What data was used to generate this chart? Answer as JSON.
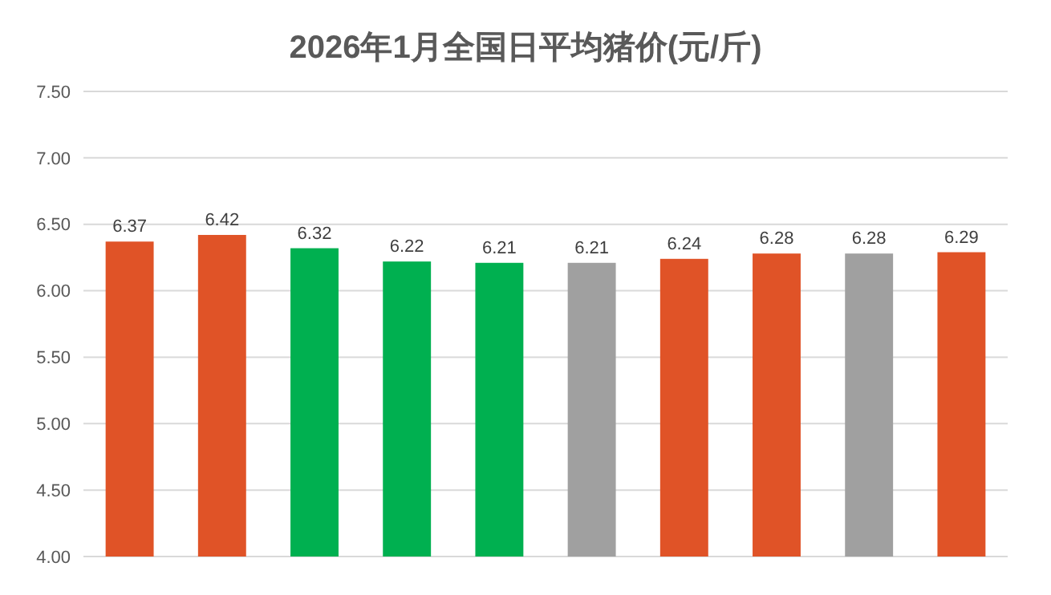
{
  "chart_data": {
    "type": "bar",
    "title": "2026年1月全国日平均猪价(元/斤)",
    "categories": [
      null,
      null,
      null,
      null,
      null,
      null,
      null,
      null,
      null,
      null
    ],
    "values": [
      6.37,
      6.42,
      6.32,
      6.22,
      6.21,
      6.21,
      6.24,
      6.28,
      6.28,
      6.29
    ],
    "colors": [
      "#e05327",
      "#e05327",
      "#00b050",
      "#00b050",
      "#00b050",
      "#a0a0a0",
      "#e05327",
      "#e05327",
      "#a0a0a0",
      "#e05327"
    ],
    "ylim": [
      4,
      7.5
    ],
    "yticks": [
      {
        "value": 4,
        "label": "4.00"
      },
      {
        "value": 4.5,
        "label": "4.50"
      },
      {
        "value": 5,
        "label": "5.00"
      },
      {
        "value": 5.5,
        "label": "5.50"
      },
      {
        "value": 6,
        "label": "6.00"
      },
      {
        "value": 6.5,
        "label": "6.50"
      },
      {
        "value": 7,
        "label": "7.00"
      },
      {
        "value": 7.5,
        "label": "7.50"
      }
    ],
    "grid": "y",
    "data_labels": true
  }
}
